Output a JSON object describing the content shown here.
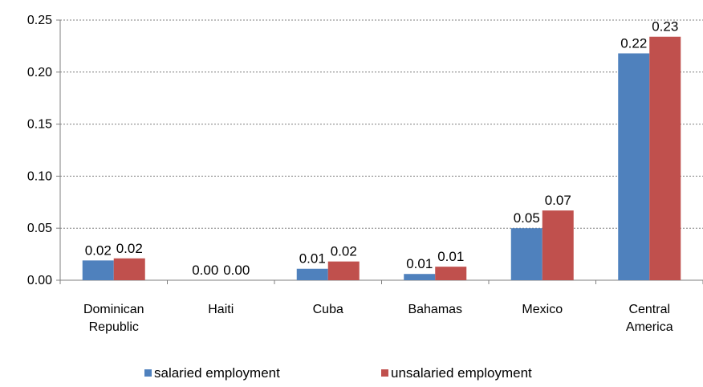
{
  "chart_data": {
    "type": "bar",
    "categories": [
      "Dominican Republic",
      "Haiti",
      "Cuba",
      "Bahamas",
      "Mexico",
      "Central America"
    ],
    "series": [
      {
        "name": "salaried employment",
        "color": "#4F81BD",
        "values": [
          0.019,
          0.0,
          0.011,
          0.006,
          0.05,
          0.218
        ],
        "labels": [
          "0.02",
          "0.00",
          "0.01",
          "0.01",
          "0.05",
          "0.22"
        ]
      },
      {
        "name": "unsalaried employment",
        "color": "#C0504D",
        "values": [
          0.021,
          0.0,
          0.018,
          0.013,
          0.067,
          0.234
        ],
        "labels": [
          "0.02",
          "0.00",
          "0.02",
          "0.01",
          "0.07",
          "0.23"
        ]
      }
    ],
    "ylim": [
      0,
      0.25
    ],
    "yticks": [
      "0.00",
      "0.05",
      "0.10",
      "0.15",
      "0.20",
      "0.25"
    ],
    "grid": true,
    "legend_position": "bottom"
  }
}
